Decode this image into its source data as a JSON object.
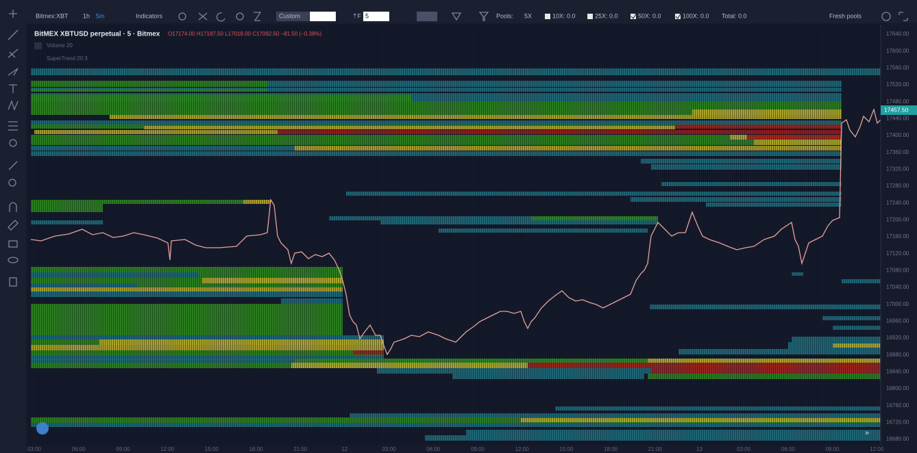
{
  "toolbar": {
    "symbol": "Bitmex:XBT",
    "intervals": [
      "1h",
      "5m"
    ],
    "indicators": "Indicators",
    "custom": "Custom",
    "levels": "5",
    "pools_label": "Pools:",
    "pools": [
      "5X",
      "10X: 0.0",
      "25X: 0.0",
      "50X: 0.0",
      "100X: 0.0"
    ],
    "total": "Total: 0.0",
    "fresh_pools": "Fresh pools"
  },
  "legend": {
    "title": "BitMEX XBTUSD perpetual · 5 · Bitmex",
    "ohlc": "O17174.00 H17187.50 L17018.00 C17092.50 −81.50 (−0.38%)",
    "indicators": [
      "Volume 20",
      "SuperTrend 20 3"
    ]
  },
  "price_axis": {
    "labels": [
      "17640.00",
      "17600.00",
      "17560.00",
      "17520.00",
      "17480.00",
      "17440.00",
      "17400.00",
      "17360.00",
      "17320.00",
      "17280.00",
      "17240.00",
      "17200.00",
      "17160.00",
      "17120.00",
      "17080.00",
      "17040.00",
      "17000.00",
      "16960.00",
      "16920.00",
      "16880.00",
      "16840.00",
      "16800.00",
      "16760.00",
      "16720.00",
      "16680.00"
    ],
    "last_price": "17457.50"
  },
  "time_axis": {
    "labels": [
      "03:00",
      "06:00",
      "09:00",
      "12:00",
      "15:00",
      "18:00",
      "21:00",
      "12",
      "03:00",
      "06:00",
      "09:00",
      "12:00",
      "15:00",
      "18:00",
      "21:00",
      "13",
      "03:00",
      "06:00",
      "09:00",
      "12:00"
    ]
  }
}
